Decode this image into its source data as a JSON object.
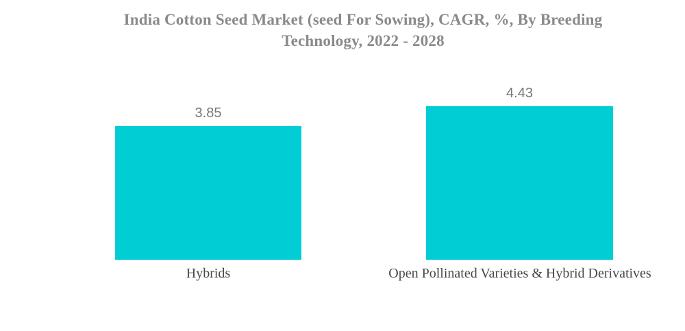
{
  "title": {
    "line1": "India Cotton Seed Market (seed For Sowing), CAGR, %, By Breeding",
    "line2": "Technology, 2022 - 2028"
  },
  "chart_data": {
    "type": "bar",
    "title": "India Cotton Seed Market (seed For Sowing), CAGR, %, By Breeding Technology, 2022 - 2028",
    "categories": [
      "Hybrids",
      "Open Pollinated Varieties & Hybrid Derivatives"
    ],
    "values": [
      3.85,
      4.43
    ],
    "value_labels": [
      "3.85",
      "4.43"
    ],
    "unit": "%",
    "xlabel": "",
    "ylabel": "",
    "ylim": [
      0,
      4.43
    ],
    "grid": false,
    "legend": false,
    "bar_color": "#00CDD4",
    "title_color": "#8A8A8A",
    "value_label_color": "#777777",
    "category_label_color": "#474747",
    "background_color": "#FFFFFF"
  }
}
